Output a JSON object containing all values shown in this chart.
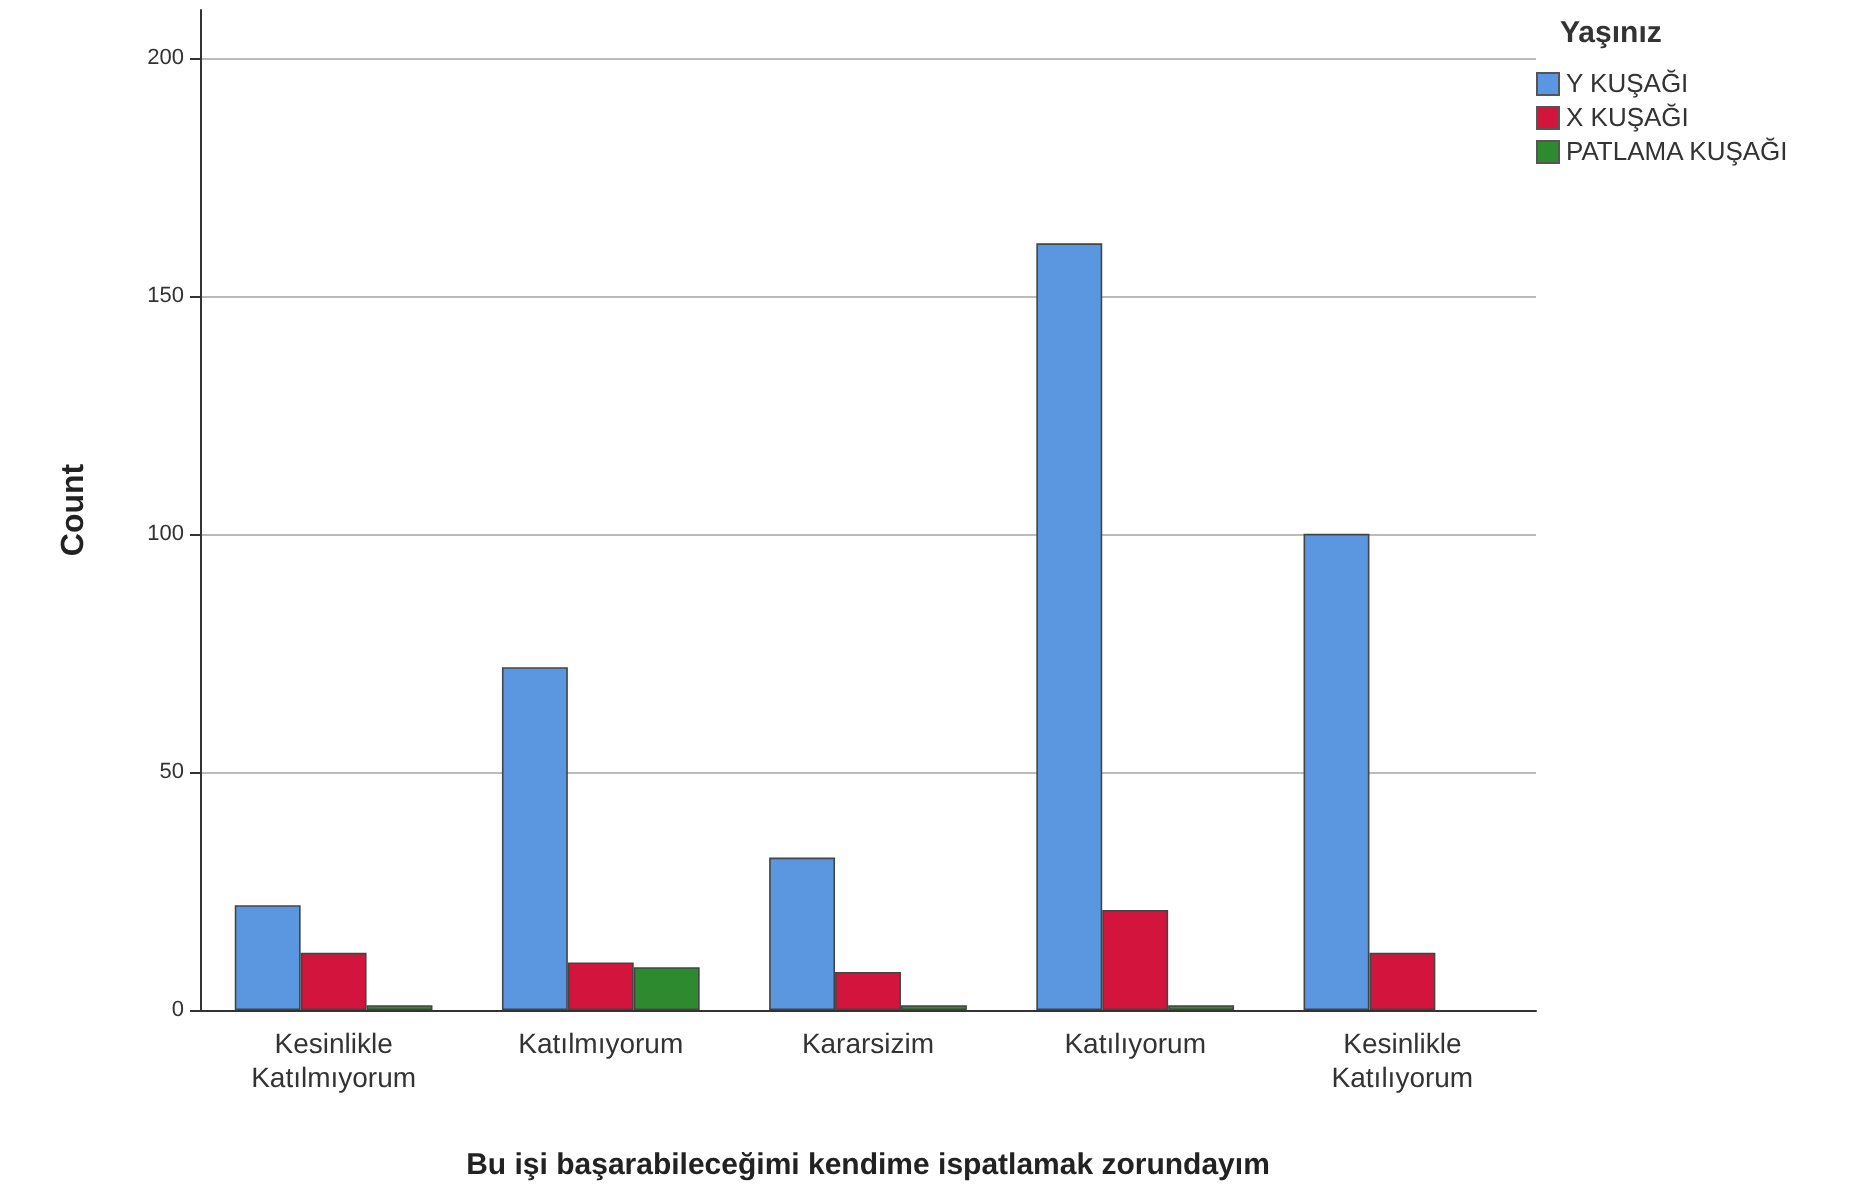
{
  "chart_data": {
    "type": "bar",
    "xlabel": "Bu işi başarabileceğimi kendime ispatlamak zorundayım",
    "ylabel": "Count",
    "legend_title": "Yaşınız",
    "categories": [
      "Kesinlikle\nKatılmıyorum",
      "Katılmıyorum",
      "Kararsizim",
      "Katılıyorum",
      "Kesinlikle\nKatılıyorum"
    ],
    "series": [
      {
        "name": "Y KUŞAĞI",
        "color": "#5b97e0",
        "values": [
          22,
          72,
          32,
          161,
          100
        ]
      },
      {
        "name": "X KUŞAĞI",
        "color": "#d3143c",
        "values": [
          12,
          10,
          8,
          21,
          12
        ]
      },
      {
        "name": "PATLAMA KUŞAĞI",
        "color": "#2e8a2e",
        "values": [
          1,
          9,
          1,
          1,
          null
        ]
      }
    ],
    "ylim": [
      0,
      210
    ],
    "yticks": [
      0,
      50,
      100,
      150,
      200
    ],
    "grid": "y",
    "legend": "top right"
  }
}
